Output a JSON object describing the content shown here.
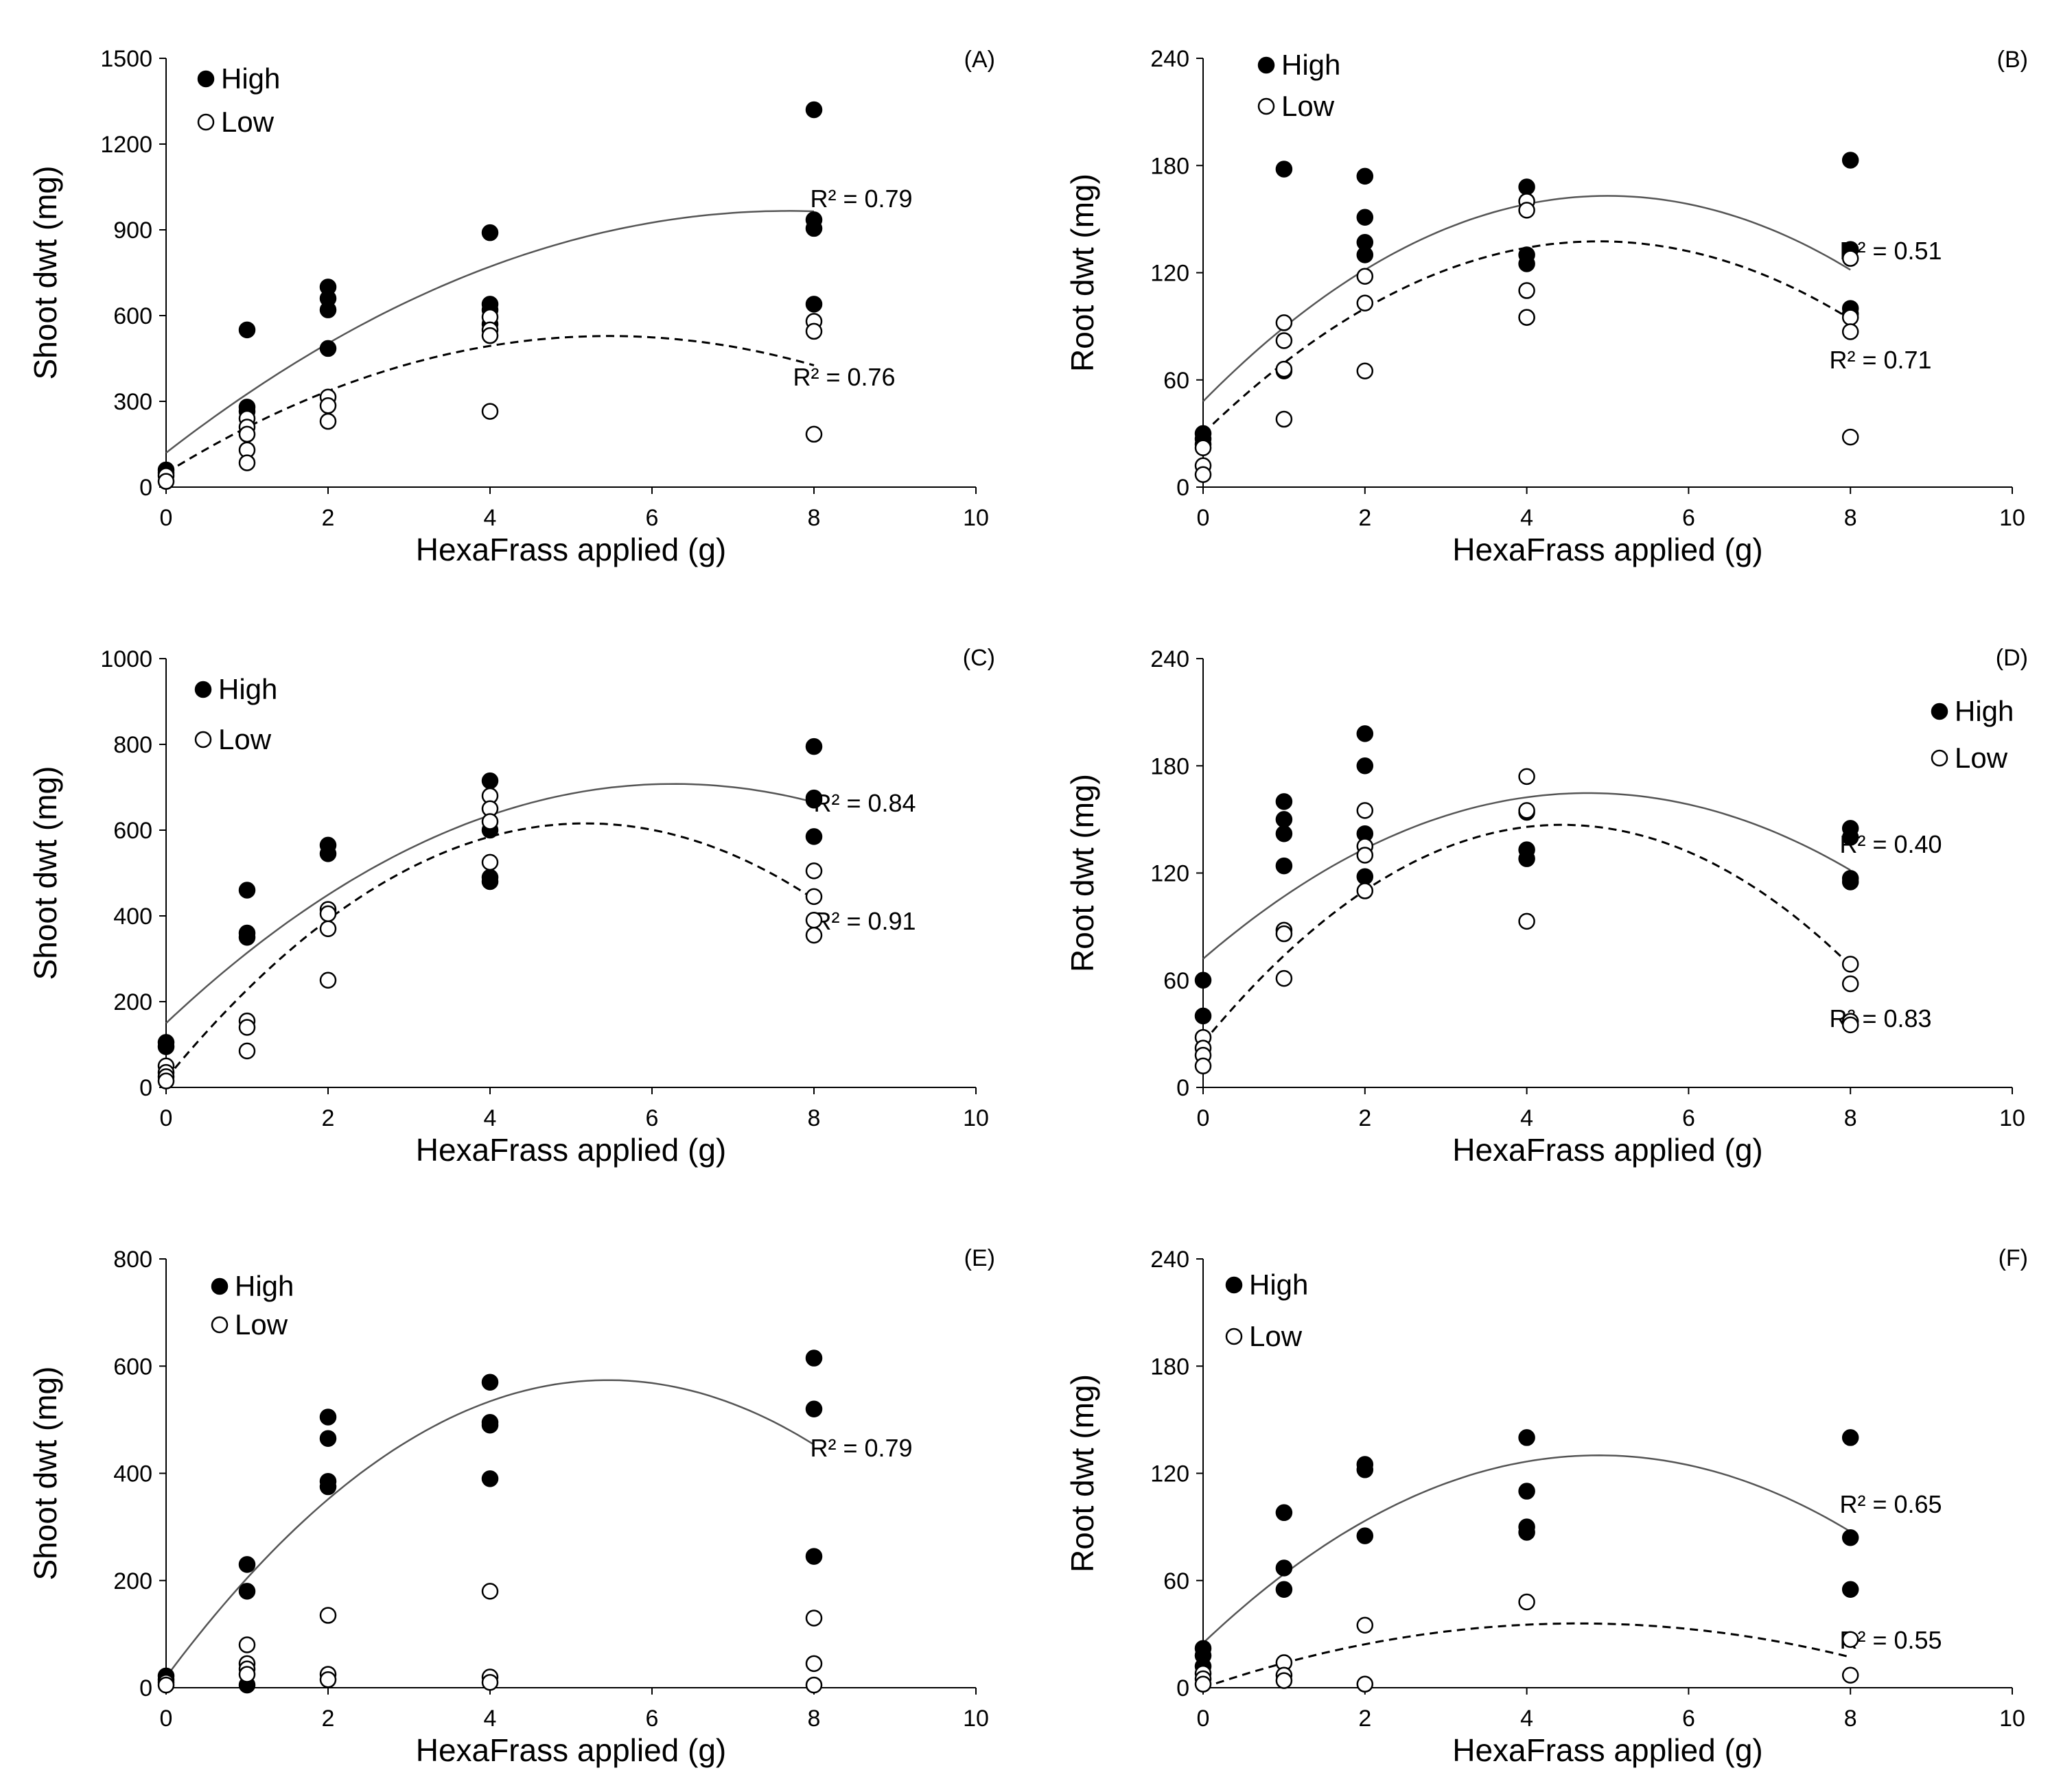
{
  "chart_data": [
    {
      "id": "A",
      "type": "scatter",
      "panel_label": "(A)",
      "xlabel": "HexaFrass applied (g)",
      "ylabel": "Shoot dwt (mg)",
      "xlim": [
        0,
        10
      ],
      "ylim": [
        0,
        1500
      ],
      "xticks": [
        0,
        2,
        4,
        6,
        8,
        10
      ],
      "yticks": [
        0,
        300,
        600,
        900,
        1200,
        1500
      ],
      "legend": {
        "high": "High",
        "low": "Low"
      },
      "series": [
        {
          "name": "High",
          "marker": "filled",
          "points": [
            [
              0,
              60
            ],
            [
              0,
              50
            ],
            [
              1,
              550
            ],
            [
              1,
              280
            ],
            [
              1,
              265
            ],
            [
              2,
              700
            ],
            [
              2,
              660
            ],
            [
              2,
              620
            ],
            [
              2,
              485
            ],
            [
              4,
              890
            ],
            [
              4,
              640
            ],
            [
              4,
              620
            ],
            [
              4,
              570
            ],
            [
              8,
              1320
            ],
            [
              8,
              935
            ],
            [
              8,
              905
            ],
            [
              8,
              640
            ]
          ],
          "trend": {
            "style": "solid",
            "r2_label": "R² = 0.79",
            "coef": [
              120,
              220,
              -14.3
            ],
            "range": [
              0,
              8
            ]
          }
        },
        {
          "name": "Low",
          "marker": "open",
          "points": [
            [
              0,
              40
            ],
            [
              0,
              20
            ],
            [
              1,
              240
            ],
            [
              1,
              210
            ],
            [
              1,
              185
            ],
            [
              1,
              130
            ],
            [
              1,
              85
            ],
            [
              2,
              315
            ],
            [
              2,
              285
            ],
            [
              2,
              230
            ],
            [
              4,
              595
            ],
            [
              4,
              550
            ],
            [
              4,
              530
            ],
            [
              4,
              265
            ],
            [
              8,
              580
            ],
            [
              8,
              545
            ],
            [
              8,
              185
            ]
          ],
          "trend": {
            "style": "dashed",
            "r2_label": "R² = 0.76",
            "coef": [
              50,
              175,
              -16
            ],
            "range": [
              0,
              8
            ]
          }
        }
      ]
    },
    {
      "id": "B",
      "type": "scatter",
      "panel_label": "(B)",
      "xlabel": "HexaFrass applied (g)",
      "ylabel": "Root dwt (mg)",
      "xlim": [
        0,
        10
      ],
      "ylim": [
        0,
        240
      ],
      "xticks": [
        0,
        2,
        4,
        6,
        8,
        10
      ],
      "yticks": [
        0,
        60,
        120,
        180,
        240
      ],
      "legend": {
        "high": "High",
        "low": "Low"
      },
      "series": [
        {
          "name": "High",
          "marker": "filled",
          "points": [
            [
              0,
              30
            ],
            [
              0,
              27
            ],
            [
              0,
              24
            ],
            [
              1,
              178
            ],
            [
              1,
              65
            ],
            [
              2,
              174
            ],
            [
              2,
              151
            ],
            [
              2,
              137
            ],
            [
              2,
              130
            ],
            [
              4,
              168
            ],
            [
              4,
              130
            ],
            [
              4,
              125
            ],
            [
              4,
              95
            ],
            [
              8,
              183
            ],
            [
              8,
              133
            ],
            [
              8,
              100
            ],
            [
              8,
              97
            ]
          ],
          "trend": {
            "style": "solid",
            "r2_label": "R² = 0.51",
            "coef": [
              48,
              46,
              -4.6
            ],
            "range": [
              0,
              8
            ]
          }
        },
        {
          "name": "Low",
          "marker": "open",
          "points": [
            [
              0,
              22
            ],
            [
              0,
              12
            ],
            [
              0,
              7
            ],
            [
              1,
              92
            ],
            [
              1,
              82
            ],
            [
              1,
              66
            ],
            [
              1,
              38
            ],
            [
              2,
              118
            ],
            [
              2,
              103
            ],
            [
              2,
              65
            ],
            [
              4,
              160
            ],
            [
              4,
              155
            ],
            [
              4,
              110
            ],
            [
              4,
              95
            ],
            [
              8,
              128
            ],
            [
              8,
              95
            ],
            [
              8,
              87
            ],
            [
              8,
              28
            ]
          ],
          "trend": {
            "style": "dashed",
            "r2_label": "R² = 0.71",
            "coef": [
              30,
              44,
              -4.5
            ],
            "range": [
              0,
              8
            ]
          }
        }
      ]
    },
    {
      "id": "C",
      "type": "scatter",
      "panel_label": "(C)",
      "xlabel": "HexaFrass applied (g)",
      "ylabel": "Shoot dwt (mg)",
      "xlim": [
        0,
        10
      ],
      "ylim": [
        0,
        1000
      ],
      "xticks": [
        0,
        2,
        4,
        6,
        8,
        10
      ],
      "yticks": [
        0,
        200,
        400,
        600,
        800,
        1000
      ],
      "legend": {
        "high": "High",
        "low": "Low"
      },
      "series": [
        {
          "name": "High",
          "marker": "filled",
          "points": [
            [
              0,
              105
            ],
            [
              0,
              95
            ],
            [
              1,
              460
            ],
            [
              1,
              360
            ],
            [
              1,
              350
            ],
            [
              2,
              565
            ],
            [
              2,
              545
            ],
            [
              4,
              715
            ],
            [
              4,
              600
            ],
            [
              4,
              490
            ],
            [
              4,
              480
            ],
            [
              8,
              795
            ],
            [
              8,
              675
            ],
            [
              8,
              670
            ],
            [
              8,
              585
            ]
          ],
          "trend": {
            "style": "solid",
            "r2_label": "R² = 0.84",
            "coef": [
              150,
              178,
              -14.2
            ],
            "range": [
              0,
              8
            ]
          }
        },
        {
          "name": "Low",
          "marker": "open",
          "points": [
            [
              0,
              50
            ],
            [
              0,
              35
            ],
            [
              0,
              25
            ],
            [
              0,
              15
            ],
            [
              1,
              155
            ],
            [
              1,
              140
            ],
            [
              1,
              85
            ],
            [
              2,
              415
            ],
            [
              2,
              405
            ],
            [
              2,
              370
            ],
            [
              2,
              250
            ],
            [
              4,
              680
            ],
            [
              4,
              650
            ],
            [
              4,
              620
            ],
            [
              4,
              525
            ],
            [
              8,
              505
            ],
            [
              8,
              445
            ],
            [
              8,
              390
            ],
            [
              8,
              355
            ]
          ],
          "trend": {
            "style": "dashed",
            "r2_label": "R² = 0.91",
            "coef": [
              20,
              230,
              -22.2
            ],
            "range": [
              0,
              8
            ]
          }
        }
      ]
    },
    {
      "id": "D",
      "type": "scatter",
      "panel_label": "(D)",
      "xlabel": "HexaFrass applied (g)",
      "ylabel": "Root dwt (mg)",
      "xlim": [
        0,
        10
      ],
      "ylim": [
        0,
        240
      ],
      "xticks": [
        0,
        2,
        4,
        6,
        8,
        10
      ],
      "yticks": [
        0,
        60,
        120,
        180,
        240
      ],
      "legend": {
        "high": "High",
        "low": "Low"
      },
      "series": [
        {
          "name": "High",
          "marker": "filled",
          "points": [
            [
              0,
              60
            ],
            [
              0,
              40
            ],
            [
              1,
              160
            ],
            [
              1,
              150
            ],
            [
              1,
              142
            ],
            [
              1,
              124
            ],
            [
              2,
              198
            ],
            [
              2,
              180
            ],
            [
              2,
              142
            ],
            [
              2,
              118
            ],
            [
              4,
              154
            ],
            [
              4,
              133
            ],
            [
              4,
              128
            ],
            [
              8,
              145
            ],
            [
              8,
              140
            ],
            [
              8,
              117
            ],
            [
              8,
              115
            ]
          ],
          "trend": {
            "style": "solid",
            "r2_label": "R² = 0.40",
            "coef": [
              72,
              39,
              -4.1
            ],
            "range": [
              0,
              8
            ]
          }
        },
        {
          "name": "Low",
          "marker": "open",
          "points": [
            [
              0,
              28
            ],
            [
              0,
              22
            ],
            [
              0,
              18
            ],
            [
              0,
              12
            ],
            [
              1,
              88
            ],
            [
              1,
              86
            ],
            [
              1,
              61
            ],
            [
              2,
              155
            ],
            [
              2,
              135
            ],
            [
              2,
              130
            ],
            [
              2,
              110
            ],
            [
              4,
              174
            ],
            [
              4,
              155
            ],
            [
              4,
              93
            ],
            [
              8,
              69
            ],
            [
              8,
              58
            ],
            [
              8,
              37
            ],
            [
              8,
              35
            ]
          ],
          "trend": {
            "style": "dashed",
            "r2_label": "R² = 0.83",
            "coef": [
              25,
              55,
              -6.2
            ],
            "range": [
              0,
              8
            ]
          }
        }
      ]
    },
    {
      "id": "E",
      "type": "scatter",
      "panel_label": "(E)",
      "xlabel": "HexaFrass applied (g)",
      "ylabel": "Shoot dwt (mg)",
      "xlim": [
        0,
        10
      ],
      "ylim": [
        0,
        800
      ],
      "xticks": [
        0,
        2,
        4,
        6,
        8,
        10
      ],
      "yticks": [
        0,
        200,
        400,
        600,
        800
      ],
      "legend": {
        "high": "High",
        "low": "Low"
      },
      "series": [
        {
          "name": "High",
          "marker": "filled",
          "points": [
            [
              0,
              22
            ],
            [
              0,
              15
            ],
            [
              1,
              230
            ],
            [
              1,
              180
            ],
            [
              1,
              5
            ],
            [
              2,
              505
            ],
            [
              2,
              465
            ],
            [
              2,
              385
            ],
            [
              2,
              375
            ],
            [
              4,
              570
            ],
            [
              4,
              495
            ],
            [
              4,
              490
            ],
            [
              4,
              390
            ],
            [
              8,
              615
            ],
            [
              8,
              520
            ],
            [
              8,
              245
            ]
          ],
          "trend": {
            "style": "solid",
            "r2_label": "R² = 0.79",
            "coef": [
              20,
              203,
              -18.6
            ],
            "range": [
              0,
              8
            ]
          }
        },
        {
          "name": "Low",
          "marker": "open",
          "points": [
            [
              0,
              10
            ],
            [
              0,
              5
            ],
            [
              1,
              80
            ],
            [
              1,
              45
            ],
            [
              1,
              35
            ],
            [
              1,
              25
            ],
            [
              2,
              135
            ],
            [
              2,
              25
            ],
            [
              2,
              15
            ],
            [
              4,
              180
            ],
            [
              4,
              20
            ],
            [
              4,
              10
            ],
            [
              8,
              130
            ],
            [
              8,
              45
            ],
            [
              8,
              5
            ]
          ],
          "trend": null
        }
      ]
    },
    {
      "id": "F",
      "type": "scatter",
      "panel_label": "(F)",
      "xlabel": "HexaFrass applied (g)",
      "ylabel": "Root dwt (mg)",
      "xlim": [
        0,
        10
      ],
      "ylim": [
        0,
        240
      ],
      "xticks": [
        0,
        2,
        4,
        6,
        8,
        10
      ],
      "yticks": [
        0,
        60,
        120,
        180,
        240
      ],
      "legend": {
        "high": "High",
        "low": "Low"
      },
      "series": [
        {
          "name": "High",
          "marker": "filled",
          "points": [
            [
              0,
              22
            ],
            [
              0,
              18
            ],
            [
              0,
              12
            ],
            [
              1,
              98
            ],
            [
              1,
              67
            ],
            [
              1,
              55
            ],
            [
              2,
              125
            ],
            [
              2,
              122
            ],
            [
              2,
              85
            ],
            [
              4,
              140
            ],
            [
              4,
              110
            ],
            [
              4,
              90
            ],
            [
              4,
              87
            ],
            [
              8,
              140
            ],
            [
              8,
              84
            ],
            [
              8,
              55
            ]
          ],
          "trend": {
            "style": "solid",
            "r2_label": "R² = 0.65",
            "coef": [
              25,
              43,
              -4.4
            ],
            "range": [
              0,
              8
            ]
          }
        },
        {
          "name": "Low",
          "marker": "open",
          "points": [
            [
              0,
              8
            ],
            [
              0,
              5
            ],
            [
              0,
              2
            ],
            [
              1,
              14
            ],
            [
              1,
              7
            ],
            [
              1,
              4
            ],
            [
              2,
              35
            ],
            [
              2,
              2
            ],
            [
              4,
              48
            ],
            [
              8,
              27
            ],
            [
              8,
              7
            ]
          ],
          "trend": {
            "style": "dashed",
            "r2_label": "R² = 0.55",
            "coef": [
              0,
              15.5,
              -1.67
            ],
            "range": [
              0,
              8
            ]
          }
        }
      ]
    }
  ]
}
